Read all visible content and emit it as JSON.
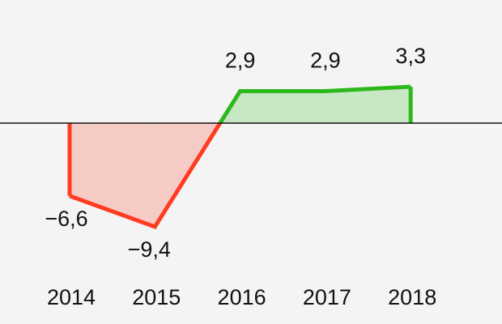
{
  "chart_data": {
    "type": "area",
    "categories": [
      "2014",
      "2015",
      "2016",
      "2017",
      "2018"
    ],
    "values": [
      -6.6,
      -9.4,
      2.9,
      2.9,
      3.3
    ],
    "value_labels": [
      "−6,6",
      "−9,4",
      "2,9",
      "2,9",
      "3,3"
    ],
    "positive_color": "#2db81c",
    "negative_color": "#ff3b22"
  }
}
